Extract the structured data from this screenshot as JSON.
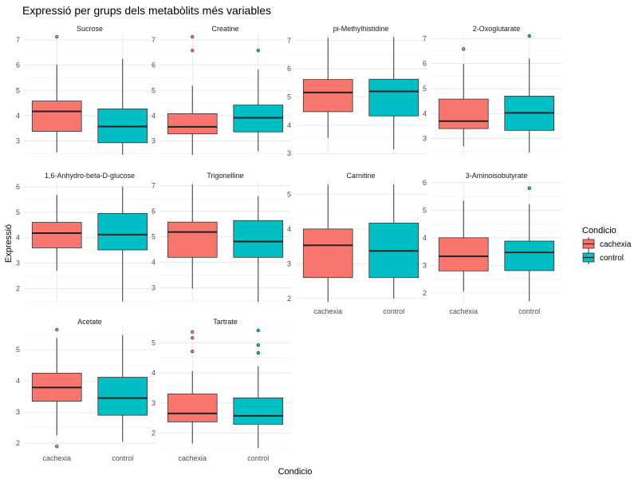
{
  "chart_data": {
    "type": "boxplot",
    "title": "Expressió per grups dels metabòlits més variables",
    "xlabel": "Condicio",
    "ylabel": "Expressió",
    "categories": [
      "cachexia",
      "control"
    ],
    "legend": {
      "title": "Condicio",
      "position": "right",
      "entries": [
        {
          "label": "cachexia",
          "color": "#F8766D"
        },
        {
          "label": "control",
          "color": "#00BFC4"
        }
      ]
    },
    "grid": true,
    "panels": [
      {
        "name": "Sucrose",
        "ylim": [
          2.45,
          7.25
        ],
        "yticks": [
          3,
          4,
          5,
          6,
          7
        ],
        "boxes": [
          {
            "group": "cachexia",
            "min": 2.55,
            "q1": 3.38,
            "median": 4.17,
            "q3": 4.58,
            "max": 6.02,
            "outliers": [
              7.12
            ]
          },
          {
            "group": "control",
            "min": 2.45,
            "q1": 2.93,
            "median": 3.57,
            "q3": 4.27,
            "max": 6.25,
            "outliers": []
          }
        ]
      },
      {
        "name": "Creatine",
        "ylim": [
          2.45,
          7.25
        ],
        "yticks": [
          3,
          4,
          5,
          6,
          7
        ],
        "boxes": [
          {
            "group": "cachexia",
            "min": 2.45,
            "q1": 3.28,
            "median": 3.56,
            "q3": 4.08,
            "max": 5.19,
            "outliers": [
              6.58,
              7.12
            ]
          },
          {
            "group": "control",
            "min": 2.6,
            "q1": 3.36,
            "median": 3.92,
            "q3": 4.42,
            "max": 5.82,
            "outliers": [
              6.58
            ]
          }
        ]
      },
      {
        "name": "pi-Methylhistidine",
        "ylim": [
          2.95,
          7.25
        ],
        "yticks": [
          3,
          4,
          5,
          6,
          7
        ],
        "boxes": [
          {
            "group": "cachexia",
            "min": 3.55,
            "q1": 4.48,
            "median": 5.16,
            "q3": 5.62,
            "max": 7.1,
            "outliers": []
          },
          {
            "group": "control",
            "min": 3.15,
            "q1": 4.33,
            "median": 5.2,
            "q3": 5.63,
            "max": 7.12,
            "outliers": []
          }
        ]
      },
      {
        "name": "2-Oxoglutarate",
        "ylim": [
          2.35,
          7.2
        ],
        "yticks": [
          3,
          4,
          5,
          6,
          7
        ],
        "boxes": [
          {
            "group": "cachexia",
            "min": 2.7,
            "q1": 3.4,
            "median": 3.7,
            "q3": 4.58,
            "max": 5.98,
            "outliers": [
              6.58
            ]
          },
          {
            "group": "control",
            "min": 2.45,
            "q1": 3.33,
            "median": 4.03,
            "q3": 4.7,
            "max": 6.2,
            "outliers": [
              7.1
            ]
          }
        ]
      },
      {
        "name": "1,6-Anhydro-beta-D-glucose",
        "ylim": [
          1.45,
          6.25
        ],
        "yticks": [
          2,
          3,
          4,
          5,
          6
        ],
        "boxes": [
          {
            "group": "cachexia",
            "min": 2.7,
            "q1": 3.6,
            "median": 4.18,
            "q3": 4.6,
            "max": 5.68,
            "outliers": []
          },
          {
            "group": "control",
            "min": 1.5,
            "q1": 3.52,
            "median": 4.12,
            "q3": 4.95,
            "max": 6.0,
            "outliers": []
          }
        ]
      },
      {
        "name": "Trigonelline",
        "ylim": [
          2.42,
          7.2
        ],
        "yticks": [
          3,
          4,
          5,
          6,
          7
        ],
        "boxes": [
          {
            "group": "cachexia",
            "min": 2.97,
            "q1": 4.19,
            "median": 5.18,
            "q3": 5.57,
            "max": 7.05,
            "outliers": []
          },
          {
            "group": "control",
            "min": 2.45,
            "q1": 4.19,
            "median": 4.81,
            "q3": 5.63,
            "max": 6.58,
            "outliers": []
          }
        ]
      },
      {
        "name": "Carnitine",
        "ylim": [
          1.88,
          5.4
        ],
        "yticks": [
          2,
          3,
          4,
          5
        ],
        "boxes": [
          {
            "group": "cachexia",
            "min": 1.9,
            "q1": 2.6,
            "median": 3.53,
            "q3": 4.0,
            "max": 5.28,
            "outliers": []
          },
          {
            "group": "control",
            "min": 2.0,
            "q1": 2.6,
            "median": 3.37,
            "q3": 4.17,
            "max": 5.28,
            "outliers": []
          }
        ]
      },
      {
        "name": "3-Aminoisobutyrate",
        "ylim": [
          1.65,
          6.08
        ],
        "yticks": [
          2,
          3,
          4,
          5,
          6
        ],
        "boxes": [
          {
            "group": "cachexia",
            "min": 2.05,
            "q1": 2.8,
            "median": 3.33,
            "q3": 4.0,
            "max": 5.35,
            "outliers": []
          },
          {
            "group": "control",
            "min": 1.7,
            "q1": 2.81,
            "median": 3.47,
            "q3": 3.88,
            "max": 5.22,
            "outliers": [
              5.8
            ]
          }
        ]
      },
      {
        "name": "Acetate",
        "ylim": [
          1.8,
          5.75
        ],
        "yticks": [
          2,
          3,
          4,
          5
        ],
        "boxes": [
          {
            "group": "cachexia",
            "min": 2.25,
            "q1": 3.35,
            "median": 3.79,
            "q3": 4.25,
            "max": 5.38,
            "outliers": [
              5.65,
              1.9
            ]
          },
          {
            "group": "control",
            "min": 2.05,
            "q1": 2.9,
            "median": 3.45,
            "q3": 4.12,
            "max": 5.48,
            "outliers": []
          }
        ]
      },
      {
        "name": "Tartrate",
        "ylim": [
          1.45,
          5.55
        ],
        "yticks": [
          2,
          3,
          4,
          5
        ],
        "boxes": [
          {
            "group": "cachexia",
            "min": 1.65,
            "q1": 2.37,
            "median": 2.65,
            "q3": 3.3,
            "max": 4.06,
            "outliers": [
              4.72,
              5.17,
              5.37
            ]
          },
          {
            "group": "control",
            "min": 1.5,
            "q1": 2.29,
            "median": 2.57,
            "q3": 3.17,
            "max": 4.22,
            "outliers": [
              4.67,
              4.93,
              5.42
            ]
          }
        ]
      }
    ]
  }
}
